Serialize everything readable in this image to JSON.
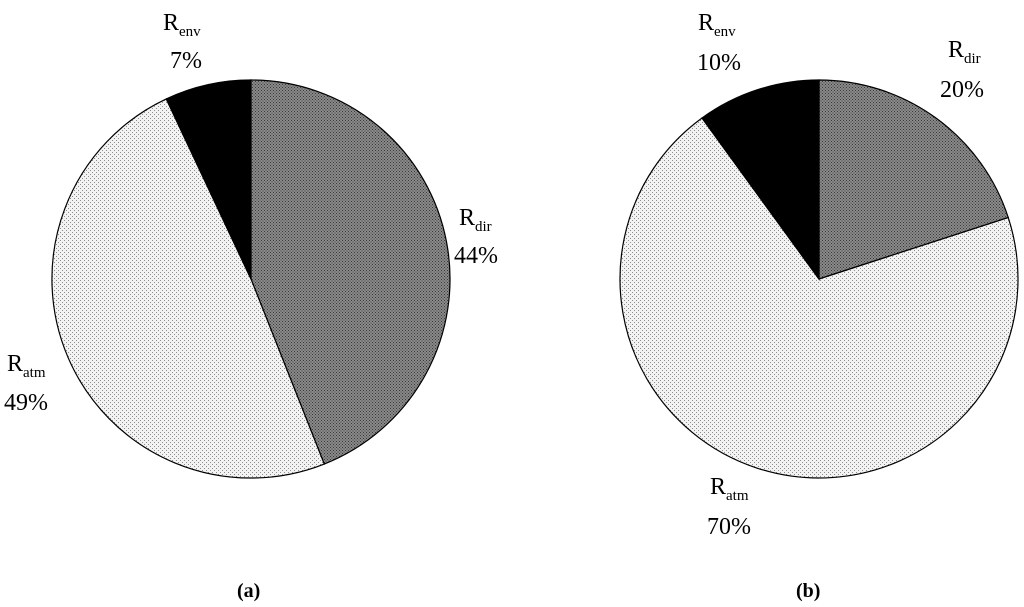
{
  "chart_data": [
    {
      "type": "pie",
      "caption": "(a)",
      "slices": [
        {
          "name": "R",
          "sub": "dir",
          "value": 44,
          "label": "44%",
          "fill": "dense"
        },
        {
          "name": "R",
          "sub": "atm",
          "value": 49,
          "label": "49%",
          "fill": "dots"
        },
        {
          "name": "R",
          "sub": "env",
          "value": 7,
          "label": "7%",
          "fill": "black"
        }
      ]
    },
    {
      "type": "pie",
      "caption": "(b)",
      "slices": [
        {
          "name": "R",
          "sub": "dir",
          "value": 20,
          "label": "20%",
          "fill": "dense"
        },
        {
          "name": "R",
          "sub": "atm",
          "value": 70,
          "label": "70%",
          "fill": "dots"
        },
        {
          "name": "R",
          "sub": "env",
          "value": 10,
          "label": "10%",
          "fill": "black"
        }
      ]
    }
  ],
  "colors": {
    "dense": "#7a7a7a",
    "dots": "#e6e6e6",
    "black": "#000000"
  }
}
